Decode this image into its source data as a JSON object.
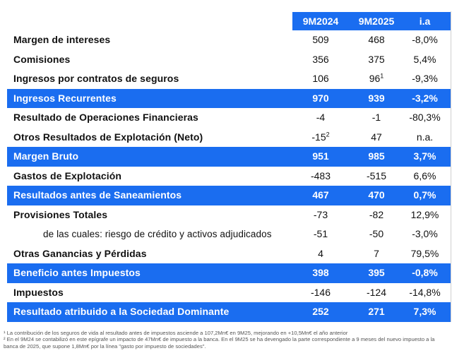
{
  "header": {
    "col1": "9M2024",
    "col2": "9M2025",
    "col3": "i.a"
  },
  "rows": [
    {
      "label": "Margen de intereses",
      "v1": "509",
      "v1sup": "",
      "v2": "468",
      "v2sup": "",
      "v3": "-8,0%",
      "hl": false,
      "sub": false
    },
    {
      "label": "Comisiones",
      "v1": "356",
      "v1sup": "",
      "v2": "375",
      "v2sup": "",
      "v3": "5,4%",
      "hl": false,
      "sub": false
    },
    {
      "label": "Ingresos por contratos de seguros",
      "v1": "106",
      "v1sup": "",
      "v2": "96",
      "v2sup": "1",
      "v3": "-9,3%",
      "hl": false,
      "sub": false
    },
    {
      "label": "Ingresos Recurrentes",
      "v1": "970",
      "v1sup": "",
      "v2": "939",
      "v2sup": "",
      "v3": "-3,2%",
      "hl": true,
      "sub": false
    },
    {
      "label": "Resultado de Operaciones Financieras",
      "v1": "-4",
      "v1sup": "",
      "v2": "-1",
      "v2sup": "",
      "v3": "-80,3%",
      "hl": false,
      "sub": false
    },
    {
      "label": "Otros Resultados de Explotación (Neto)",
      "v1": "-15",
      "v1sup": "2",
      "v2": "47",
      "v2sup": "",
      "v3": "n.a.",
      "hl": false,
      "sub": false
    },
    {
      "label": "Margen Bruto",
      "v1": "951",
      "v1sup": "",
      "v2": "985",
      "v2sup": "",
      "v3": "3,7%",
      "hl": true,
      "sub": false
    },
    {
      "label": "Gastos de Explotación",
      "v1": "-483",
      "v1sup": "",
      "v2": "-515",
      "v2sup": "",
      "v3": "6,6%",
      "hl": false,
      "sub": false
    },
    {
      "label": "Resultados antes de Saneamientos",
      "v1": "467",
      "v1sup": "",
      "v2": "470",
      "v2sup": "",
      "v3": "0,7%",
      "hl": true,
      "sub": false
    },
    {
      "label": "Provisiones Totales",
      "v1": "-73",
      "v1sup": "",
      "v2": "-82",
      "v2sup": "",
      "v3": "12,9%",
      "hl": false,
      "sub": false
    },
    {
      "label": "de las cuales: riesgo de crédito y activos adjudicados",
      "v1": "-51",
      "v1sup": "",
      "v2": "-50",
      "v2sup": "",
      "v3": "-3,0%",
      "hl": false,
      "sub": true
    },
    {
      "label": "Otras Ganancias y Pérdidas",
      "v1": "4",
      "v1sup": "",
      "v2": "7",
      "v2sup": "",
      "v3": "79,5%",
      "hl": false,
      "sub": false
    },
    {
      "label": "Beneficio antes Impuestos",
      "v1": "398",
      "v1sup": "",
      "v2": "395",
      "v2sup": "",
      "v3": "-0,8%",
      "hl": true,
      "sub": false
    },
    {
      "label": "Impuestos",
      "v1": "-146",
      "v1sup": "",
      "v2": "-124",
      "v2sup": "",
      "v3": "-14,8%",
      "hl": false,
      "sub": false
    },
    {
      "label": "Resultado atribuido a la Sociedad Dominante",
      "v1": "252",
      "v1sup": "",
      "v2": "271",
      "v2sup": "",
      "v3": "7,3%",
      "hl": true,
      "sub": false
    }
  ],
  "footnotes": [
    "¹ La contribución de los seguros de vida al resultado antes de impuestos asciende a 107,2Mn€ en 9M25, mejorando en +10,5Mn€ el año anterior",
    "² En el 9M24 se contabilizó en este epígrafe un impacto de 47Mn€ de impuesto a la banca. En el 9M25 se ha devengado la parte correspondiente a 9 meses del nuevo impuesto a la banca de 2025, que supone 1,8Mn€ por la línea \"gasto por impuesto de sociedades\"."
  ],
  "colors": {
    "accent": "#1a6df0"
  }
}
